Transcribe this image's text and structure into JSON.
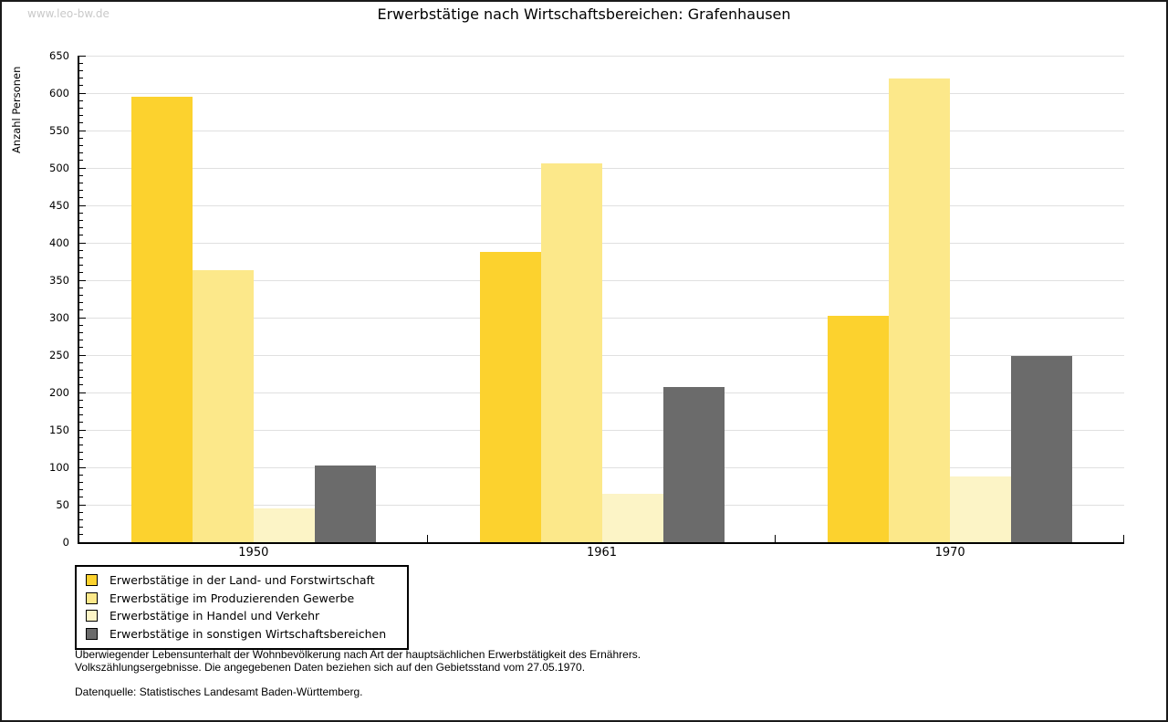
{
  "watermark": "www.leo-bw.de",
  "chart_data": {
    "type": "bar",
    "title": "Erwerbstätige nach Wirtschaftsbereichen: Grafenhausen",
    "ylabel": "Anzahl Personen",
    "xlabel": "",
    "categories": [
      "1950",
      "1961",
      "1970"
    ],
    "series": [
      {
        "name": "Erwerbstätige in der Land- und Forstwirtschaft",
        "color": "#fcd22e",
        "values": [
          595,
          388,
          302
        ]
      },
      {
        "name": "Erwerbstätige im Produzierenden Gewerbe",
        "color": "#fce88a",
        "values": [
          363,
          506,
          620
        ]
      },
      {
        "name": "Erwerbstätige in Handel und Verkehr",
        "color": "#fcf4c6",
        "values": [
          45,
          65,
          88
        ]
      },
      {
        "name": "Erwerbstätige in sonstigen Wirtschaftsbereichen",
        "color": "#6b6b6b",
        "values": [
          103,
          207,
          249
        ]
      }
    ],
    "ylim": [
      0,
      650
    ],
    "ytick_step": 50,
    "ytick_minor_step": 10,
    "grid": true,
    "gridline_color": "#e0e0e0",
    "legend_position": "bottom-left"
  },
  "footer": {
    "note_line1": "Überwiegender Lebensunterhalt der Wohnbevölkerung nach Art der hauptsächlichen Erwerbstätigkeit des Ernährers.",
    "note_line2": "Volkszählungsergebnisse. Die angegebenen Daten beziehen sich auf den Gebietsstand vom 27.05.1970.",
    "source": "Datenquelle: Statistisches Landesamt Baden-Württemberg."
  }
}
